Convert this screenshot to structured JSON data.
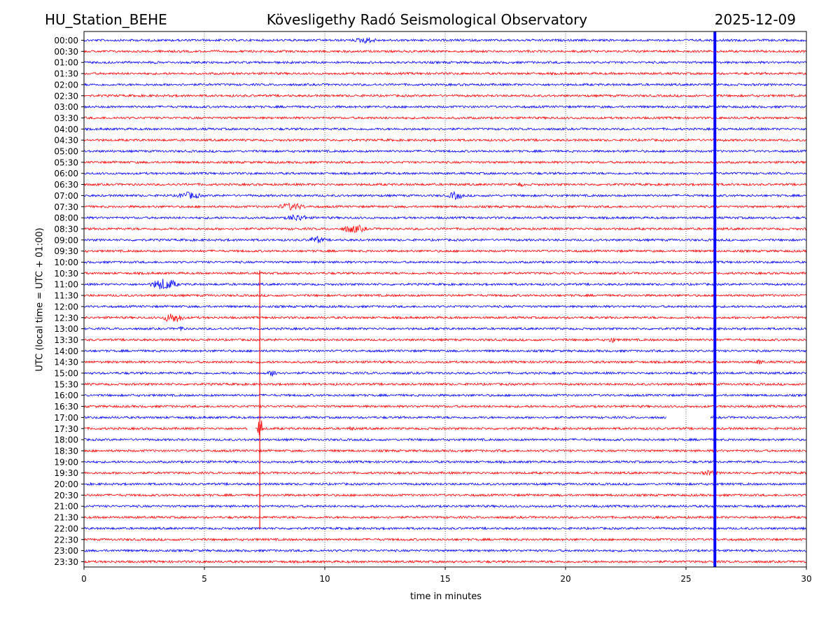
{
  "header": {
    "station": "HU_Station_BEHE",
    "observatory": "Kövesligethy Radó Seismological Observatory",
    "date": "2025-12-09"
  },
  "chart_data": {
    "type": "line",
    "subtype": "helicorder",
    "title": "Kövesligethy Radó Seismological Observatory",
    "xlabel": "time in minutes",
    "ylabel": "UTC (local time = UTC + 01:00)",
    "xlim": [
      0,
      30
    ],
    "x_ticks": [
      0,
      5,
      10,
      15,
      20,
      25,
      30
    ],
    "grid": "vertical dotted lines at x ticks",
    "colors": {
      "even_rows": "#0000ff",
      "odd_rows": "#ff0000"
    },
    "rows": [
      "00:00",
      "00:30",
      "01:00",
      "01:30",
      "02:00",
      "02:30",
      "03:00",
      "03:30",
      "04:00",
      "04:30",
      "05:00",
      "05:30",
      "06:00",
      "06:30",
      "07:00",
      "07:30",
      "08:00",
      "08:30",
      "09:00",
      "09:30",
      "10:00",
      "10:30",
      "11:00",
      "11:30",
      "12:00",
      "12:30",
      "13:00",
      "13:30",
      "14:00",
      "14:30",
      "15:00",
      "15:30",
      "16:00",
      "16:30",
      "17:00",
      "17:30",
      "18:00",
      "18:30",
      "19:00",
      "19:30",
      "20:00",
      "20:30",
      "21:00",
      "21:30",
      "22:00",
      "22:30",
      "23:00",
      "23:30"
    ],
    "events": [
      {
        "row": "00:00",
        "start_min": 11.2,
        "end_min": 12.8,
        "amp": 0.35
      },
      {
        "row": "06:30",
        "start_min": 18.0,
        "end_min": 18.4,
        "amp": 0.25
      },
      {
        "row": "07:00",
        "start_min": 3.8,
        "end_min": 5.6,
        "amp": 0.45
      },
      {
        "row": "07:00",
        "start_min": 15.1,
        "end_min": 16.2,
        "amp": 0.5
      },
      {
        "row": "07:30",
        "start_min": 8.0,
        "end_min": 10.0,
        "amp": 0.45
      },
      {
        "row": "08:00",
        "start_min": 8.3,
        "end_min": 10.0,
        "amp": 0.4
      },
      {
        "row": "08:30",
        "start_min": 10.6,
        "end_min": 12.5,
        "amp": 0.5
      },
      {
        "row": "09:00",
        "start_min": 9.3,
        "end_min": 10.5,
        "amp": 0.45
      },
      {
        "row": "11:00",
        "start_min": 2.7,
        "end_min": 4.7,
        "amp": 0.8
      },
      {
        "row": "12:30",
        "start_min": 3.2,
        "end_min": 4.8,
        "amp": 0.65
      },
      {
        "row": "13:00",
        "start_min": 3.9,
        "end_min": 4.3,
        "amp": 0.35
      },
      {
        "row": "13:30",
        "start_min": 21.8,
        "end_min": 22.2,
        "amp": 0.5
      },
      {
        "row": "14:30",
        "start_min": 27.9,
        "end_min": 28.4,
        "amp": 0.35
      },
      {
        "row": "15:00",
        "start_min": 7.6,
        "end_min": 8.5,
        "amp": 0.4
      },
      {
        "row": "17:30",
        "start_min": 7.2,
        "end_min": 7.6,
        "amp": 1.9
      },
      {
        "row": "17:30",
        "start_min": 11.0,
        "end_min": 11.3,
        "amp": 0.45
      },
      {
        "row": "19:30",
        "start_min": 25.6,
        "end_min": 26.8,
        "amp": 0.3
      }
    ],
    "data_gaps": [
      {
        "row": "17:00",
        "start_min": 24.2,
        "end_min": 26.0
      },
      {
        "row": "17:30",
        "start_min": 6.8,
        "end_min": 7.1
      }
    ],
    "spikes": [
      {
        "row": "17:30",
        "minute": 7.3,
        "from_row": "10:30",
        "to_row": "22:00",
        "color": "#ff0000"
      },
      {
        "row": "all",
        "minute": 26.2,
        "from_row": "00:00",
        "to_row": "23:30",
        "color": "#0000ff"
      }
    ]
  }
}
